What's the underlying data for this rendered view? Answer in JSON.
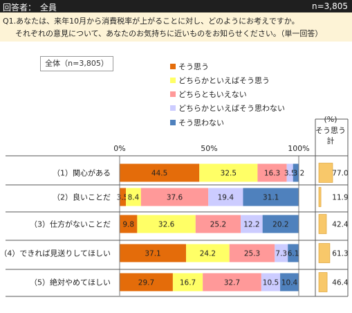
{
  "header": {
    "left": "回答者：　全員",
    "right": "n=3,805"
  },
  "question": {
    "line1": "Q1.あなたは、来年10月から消費税率が上がることに対し、どのようにお考えですか。",
    "line2": "それぞれの意見について、あなたのお気持ちに近いものをお知らせください。（単一回答）"
  },
  "total_label": "全体（n=3,805）",
  "unit_label": "(%)",
  "sum_header": [
    "そう思う",
    "計"
  ],
  "chart_data": {
    "type": "bar",
    "orientation": "horizontal",
    "stacked": true,
    "x_ticks": [
      "0%",
      "50%",
      "100%"
    ],
    "xlim": [
      0,
      100
    ],
    "legend_placement": "top-center",
    "categories": [
      "（1）関心がある",
      "（2）良いことだ",
      "（3）仕方がないことだ",
      "（4）できれば見送りしてほしい",
      "（5）絶対やめてほしい"
    ],
    "series": [
      {
        "name": "そう思う",
        "color": "#e46c0a",
        "values": [
          44.5,
          3.5,
          9.8,
          37.1,
          29.7
        ]
      },
      {
        "name": "どちらかといえばそう思う",
        "color": "#ffff66",
        "values": [
          32.5,
          8.4,
          32.6,
          24.2,
          16.7
        ]
      },
      {
        "name": "どちらともいえない",
        "color": "#ff9999",
        "values": [
          16.3,
          37.6,
          25.2,
          25.3,
          32.7
        ]
      },
      {
        "name": "どちらかといえばそう思わない",
        "color": "#ccccff",
        "values": [
          3.5,
          19.4,
          12.2,
          7.3,
          10.5
        ]
      },
      {
        "name": "そう思わない",
        "color": "#4f81bd",
        "values": [
          3.2,
          31.1,
          20.2,
          6.1,
          10.4
        ]
      }
    ],
    "sum_values": [
      77.0,
      11.9,
      42.4,
      61.3,
      46.4
    ],
    "sum_labels": [
      "77.0",
      "11.9",
      "42.4",
      "61.3",
      "46.4"
    ],
    "sum_color": "#f8c86a",
    "value_labels": [
      [
        "44.5",
        "32.5",
        "16.3",
        "3.5",
        "3.2"
      ],
      [
        "3.5",
        "8.4",
        "37.6",
        "19.4",
        "31.1"
      ],
      [
        "9.8",
        "32.6",
        "25.2",
        "12.2",
        "20.2"
      ],
      [
        "37.1",
        "24.2",
        "25.3",
        "7.3",
        "6.1"
      ],
      [
        "29.7",
        "16.7",
        "32.7",
        "10.5",
        "10.4"
      ]
    ]
  }
}
